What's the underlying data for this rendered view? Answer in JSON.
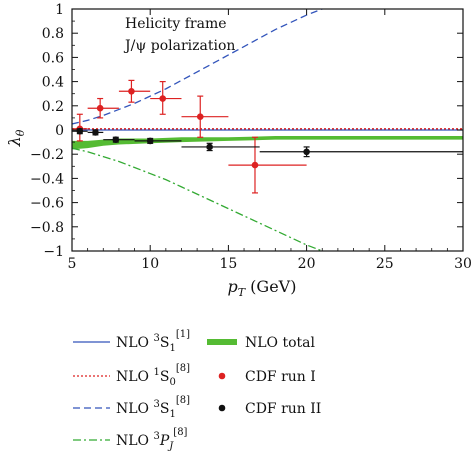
{
  "chart_data": {
    "type": "scatter",
    "annotations": [
      "Helicity frame",
      "J/ψ polarization"
    ],
    "xlabel": {
      "main": "p",
      "sub": "T",
      "rest": " (GeV)"
    },
    "ylabel": {
      "main": "λ",
      "sub": "θ"
    },
    "xlim": [
      5,
      30
    ],
    "ylim": [
      -1,
      1
    ],
    "x_ticks": [
      5,
      10,
      15,
      20,
      25,
      30
    ],
    "y_ticks": [
      1,
      0.8,
      0.6,
      0.4,
      0.2,
      0,
      -0.2,
      -0.4,
      -0.6,
      -0.8,
      -1
    ],
    "grid": false,
    "series": [
      {
        "name": "NLO 3S1[1]",
        "label": {
          "prefix": "NLO ",
          "sup_pre": "3",
          "letter": "S",
          "sub": "1",
          "sup_post": "[1]"
        },
        "kind": "line",
        "color": "#3355bb",
        "dash": "none",
        "x": [
          5,
          10,
          15,
          20,
          25,
          30
        ],
        "y": [
          0.0,
          0.0,
          0.0,
          0.0,
          0.0,
          0.0
        ]
      },
      {
        "name": "NLO 1S0[8]",
        "label": {
          "prefix": "NLO ",
          "sup_pre": "1",
          "letter": "S",
          "sub": "0",
          "sup_post": "[8]"
        },
        "kind": "line",
        "color": "#dd2222",
        "dash": "2,2",
        "x": [
          5,
          10,
          15,
          20,
          25,
          30
        ],
        "y": [
          0.01,
          0.01,
          0.01,
          0.01,
          0.01,
          0.01
        ]
      },
      {
        "name": "NLO 3S1[8]",
        "label": {
          "prefix": "NLO ",
          "sup_pre": "3",
          "letter": "S",
          "sub": "1",
          "sup_post": "[8]"
        },
        "kind": "line",
        "color": "#3355bb",
        "dash": "7,4",
        "x": [
          5,
          6,
          7,
          8,
          9,
          10,
          11,
          12,
          13,
          14,
          15,
          16,
          17,
          18,
          19,
          20,
          21
        ],
        "y": [
          0.05,
          0.08,
          0.12,
          0.17,
          0.22,
          0.28,
          0.34,
          0.41,
          0.48,
          0.55,
          0.62,
          0.69,
          0.76,
          0.83,
          0.89,
          0.95,
          1.0
        ]
      },
      {
        "name": "NLO 3PJ[8]",
        "label": {
          "prefix": "NLO ",
          "sup_pre": "3",
          "letter": "P",
          "sub": "J",
          "sup_post": "[8]"
        },
        "kind": "line",
        "color": "#33aa33",
        "dash": "8,3,2,3",
        "x": [
          5,
          6,
          7,
          8,
          9,
          10,
          11,
          12,
          13,
          14,
          15,
          16,
          17,
          18,
          19,
          20,
          21
        ],
        "y": [
          -0.15,
          -0.18,
          -0.22,
          -0.26,
          -0.31,
          -0.36,
          -0.41,
          -0.47,
          -0.53,
          -0.59,
          -0.65,
          -0.71,
          -0.77,
          -0.83,
          -0.89,
          -0.95,
          -1.0
        ]
      },
      {
        "name": "NLO total",
        "label": {
          "prefix": "NLO total",
          "sup_pre": "",
          "letter": "",
          "sub": "",
          "sup_post": ""
        },
        "kind": "band",
        "color": "#55bb33",
        "x": [
          5,
          6,
          7,
          8,
          10,
          12,
          15,
          18,
          20,
          25,
          30
        ],
        "y_low": [
          -0.16,
          -0.15,
          -0.13,
          -0.12,
          -0.11,
          -0.1,
          -0.09,
          -0.08,
          -0.08,
          -0.08,
          -0.08
        ],
        "y_high": [
          -0.09,
          -0.09,
          -0.08,
          -0.07,
          -0.07,
          -0.06,
          -0.06,
          -0.05,
          -0.05,
          -0.05,
          -0.05
        ]
      },
      {
        "name": "CDF run I",
        "label": {
          "prefix": "CDF run I",
          "sup_pre": "",
          "letter": "",
          "sub": "",
          "sup_post": ""
        },
        "kind": "points",
        "color": "#dd2222",
        "points": [
          {
            "x": 5.5,
            "xlo": 5.0,
            "xhi": 6.0,
            "y": 0.01,
            "ylo": -0.09,
            "yhi": 0.13
          },
          {
            "x": 6.8,
            "xlo": 6.0,
            "xhi": 8.0,
            "y": 0.18,
            "ylo": 0.1,
            "yhi": 0.26
          },
          {
            "x": 8.8,
            "xlo": 8.0,
            "xhi": 10.0,
            "y": 0.32,
            "ylo": 0.23,
            "yhi": 0.41
          },
          {
            "x": 10.8,
            "xlo": 10.0,
            "xhi": 12.0,
            "y": 0.26,
            "ylo": 0.13,
            "yhi": 0.4
          },
          {
            "x": 13.2,
            "xlo": 12.0,
            "xhi": 15.0,
            "y": 0.11,
            "ylo": -0.06,
            "yhi": 0.28
          },
          {
            "x": 16.7,
            "xlo": 15.0,
            "xhi": 20.0,
            "y": -0.29,
            "ylo": -0.52,
            "yhi": -0.06
          }
        ]
      },
      {
        "name": "CDF run II",
        "label": {
          "prefix": "CDF run II",
          "sup_pre": "",
          "letter": "",
          "sub": "",
          "sup_post": ""
        },
        "kind": "points",
        "color": "#111111",
        "points": [
          {
            "x": 5.5,
            "xlo": 5.0,
            "xhi": 6.0,
            "y": -0.01,
            "ylo": -0.03,
            "yhi": 0.01
          },
          {
            "x": 6.5,
            "xlo": 6.0,
            "xhi": 7.0,
            "y": -0.02,
            "ylo": -0.04,
            "yhi": 0.0
          },
          {
            "x": 7.8,
            "xlo": 7.0,
            "xhi": 9.0,
            "y": -0.08,
            "ylo": -0.1,
            "yhi": -0.06
          },
          {
            "x": 10.0,
            "xlo": 9.0,
            "xhi": 12.0,
            "y": -0.09,
            "ylo": -0.11,
            "yhi": -0.07
          },
          {
            "x": 13.8,
            "xlo": 12.0,
            "xhi": 17.0,
            "y": -0.14,
            "ylo": -0.17,
            "yhi": -0.11
          },
          {
            "x": 20.0,
            "xlo": 17.0,
            "xhi": 30.0,
            "y": -0.18,
            "ylo": -0.22,
            "yhi": -0.14
          }
        ]
      }
    ],
    "legend": {
      "placement": "below",
      "left_column": [
        "NLO 3S1[1]",
        "NLO 1S0[8]",
        "NLO 3S1[8]",
        "NLO 3PJ[8]"
      ],
      "right_column": [
        "NLO total",
        "CDF run I",
        "CDF run II"
      ]
    }
  }
}
